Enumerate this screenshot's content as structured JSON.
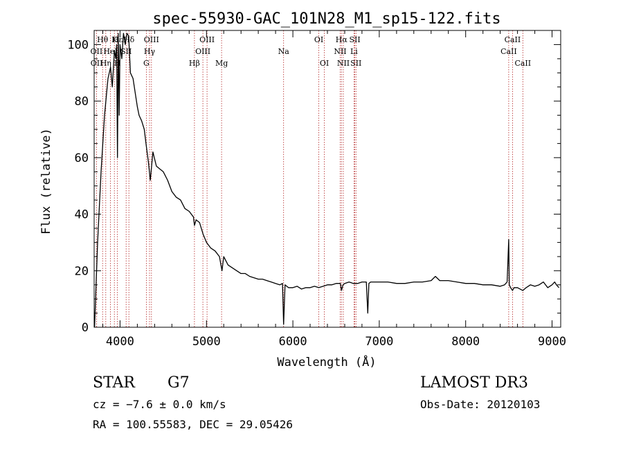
{
  "chart_data": {
    "type": "line",
    "title": "spec-55930-GAC_101N28_M1_sp15-122.fits",
    "xlabel": "Wavelength (Å)",
    "ylabel": "Flux (relative)",
    "xlim": [
      3700,
      9100
    ],
    "ylim": [
      0,
      105
    ],
    "x_ticks": [
      4000,
      5000,
      6000,
      7000,
      8000,
      9000
    ],
    "x_minor_step": 200,
    "y_ticks": [
      0,
      20,
      40,
      60,
      80,
      100
    ],
    "y_minor_step": 5,
    "grid": false,
    "series": [
      {
        "name": "flux",
        "x": [
          3705,
          3740,
          3780,
          3820,
          3860,
          3890,
          3910,
          3935,
          3950,
          3960,
          3970,
          3980,
          3990,
          4000,
          4020,
          4040,
          4060,
          4080,
          4100,
          4120,
          4150,
          4180,
          4200,
          4220,
          4250,
          4280,
          4300,
          4330,
          4350,
          4380,
          4420,
          4460,
          4500,
          4550,
          4600,
          4650,
          4700,
          4750,
          4800,
          4850,
          4861,
          4880,
          4920,
          4960,
          5000,
          5050,
          5100,
          5150,
          5180,
          5200,
          5250,
          5300,
          5350,
          5400,
          5450,
          5500,
          5550,
          5600,
          5650,
          5700,
          5750,
          5800,
          5850,
          5880,
          5893,
          5910,
          5950,
          6000,
          6050,
          6100,
          6150,
          6200,
          6250,
          6300,
          6350,
          6400,
          6450,
          6500,
          6550,
          6563,
          6580,
          6600,
          6650,
          6700,
          6750,
          6800,
          6850,
          6867,
          6880,
          6900,
          6950,
          7000,
          7100,
          7200,
          7300,
          7400,
          7500,
          7600,
          7650,
          7700,
          7800,
          7900,
          8000,
          8100,
          8200,
          8300,
          8400,
          8450,
          8480,
          8498,
          8505,
          8520,
          8542,
          8560,
          8600,
          8662,
          8700,
          8750,
          8800,
          8850,
          8900,
          8950,
          9000,
          9030,
          9050,
          9080
        ],
        "values": [
          0,
          30,
          55,
          75,
          88,
          92,
          85,
          98,
          95,
          100,
          60,
          104,
          75,
          100,
          95,
          104,
          100,
          104,
          103,
          90,
          88,
          82,
          78,
          75,
          73,
          70,
          65,
          58,
          52,
          62,
          57,
          56,
          55,
          52,
          48,
          46,
          45,
          42,
          41,
          39,
          36,
          38,
          37,
          33,
          30,
          28,
          27,
          25,
          20,
          25,
          22,
          21,
          20,
          19,
          19,
          18,
          17.5,
          17,
          17,
          16.5,
          16,
          15.5,
          15,
          15.5,
          1,
          15,
          14,
          14,
          14.5,
          13.5,
          14,
          14,
          14.5,
          14,
          14.5,
          15,
          15,
          15.5,
          15.5,
          13,
          15,
          15.5,
          16,
          15.5,
          15.5,
          16,
          16,
          5,
          15.5,
          16,
          16,
          16,
          16,
          15.5,
          15.5,
          16,
          16,
          16.5,
          18,
          16.5,
          16.5,
          16,
          15.5,
          15.5,
          15,
          15,
          14.5,
          15,
          16,
          31,
          15,
          14,
          13,
          14,
          14,
          13,
          14,
          15,
          14.5,
          15,
          16,
          14,
          15,
          16,
          15,
          14
        ]
      }
    ],
    "line_labels": [
      {
        "text": "Hθ",
        "x": 3798,
        "row": 0
      },
      {
        "text": "OII",
        "x": 3727,
        "row": 1
      },
      {
        "text": "OII",
        "x": 3729,
        "row": 2
      },
      {
        "text": "Hη",
        "x": 3835,
        "row": 2
      },
      {
        "text": "HeI",
        "x": 3889,
        "row": 1
      },
      {
        "text": "K",
        "x": 3934,
        "row": 0
      },
      {
        "text": "H",
        "x": 3969,
        "row": 2
      },
      {
        "text": "Hε",
        "x": 3970,
        "row": 0
      },
      {
        "text": "SII",
        "x": 4070,
        "row": 1
      },
      {
        "text": "Hδ",
        "x": 4102,
        "row": 0
      },
      {
        "text": "OIII",
        "x": 4363,
        "row": 0
      },
      {
        "text": "Hγ",
        "x": 4341,
        "row": 1
      },
      {
        "text": "G",
        "x": 4304,
        "row": 2
      },
      {
        "text": "Hβ",
        "x": 4861,
        "row": 2
      },
      {
        "text": "OIII",
        "x": 5007,
        "row": 0
      },
      {
        "text": "OIII",
        "x": 4959,
        "row": 1
      },
      {
        "text": "Mg",
        "x": 5175,
        "row": 2
      },
      {
        "text": "Na",
        "x": 5893,
        "row": 1
      },
      {
        "text": "OI",
        "x": 6300,
        "row": 0
      },
      {
        "text": "OI",
        "x": 6364,
        "row": 2
      },
      {
        "text": "Hα",
        "x": 6563,
        "row": 0
      },
      {
        "text": "NII",
        "x": 6548,
        "row": 1
      },
      {
        "text": "NII",
        "x": 6584,
        "row": 2
      },
      {
        "text": "SII",
        "x": 6717,
        "row": 0
      },
      {
        "text": "Li",
        "x": 6708,
        "row": 1
      },
      {
        "text": "SII",
        "x": 6731,
        "row": 2
      },
      {
        "text": "CaII",
        "x": 8542,
        "row": 0
      },
      {
        "text": "CaII",
        "x": 8498,
        "row": 1
      },
      {
        "text": "CaII",
        "x": 8662,
        "row": 2
      }
    ],
    "line_positions": [
      3727,
      3798,
      3835,
      3889,
      3934,
      3969,
      4070,
      4102,
      4304,
      4341,
      4363,
      4861,
      4959,
      5007,
      5175,
      5893,
      6300,
      6364,
      6548,
      6563,
      6584,
      6708,
      6717,
      6731,
      8498,
      8542,
      8662
    ],
    "colors": {
      "spectrum": "#000000",
      "line_markers": "#b22222"
    }
  },
  "info": {
    "object_class": "STAR",
    "subclass": "G7",
    "survey": "LAMOST DR3",
    "redshift_line": "cz = −7.6 ± 0.0 km/s",
    "obs_date": "Obs-Date: 20120103",
    "coords": "RA = 100.55583, DEC =  29.05426"
  }
}
